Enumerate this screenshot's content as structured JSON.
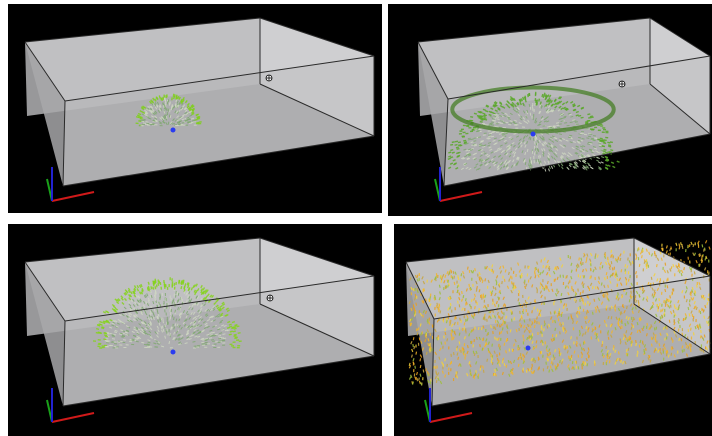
{
  "panels": [
    {
      "stage": "small-hemisphere",
      "particle_color": "#7fd01a"
    },
    {
      "stage": "large-dome",
      "particle_color": "#5aa82a"
    },
    {
      "stage": "wide-hemisphere",
      "particle_color": "#86d31e"
    },
    {
      "stage": "dispersed-particles",
      "particle_color": "#f2b52a"
    }
  ],
  "colors": {
    "background": "#000000",
    "box_back_wall": "#a9a9ab",
    "box_floor": "#8e8e90",
    "box_front": "#c8c8ca",
    "edge": "#2a2a2a",
    "axis_x": "#d01a1a",
    "axis_y": "#1aa01a",
    "axis_z": "#2222d0",
    "center_marker": "#2a3cf0"
  },
  "icons": {
    "cursor": "crosshair-cursor-icon",
    "axes": "xyz-axes-icon"
  }
}
